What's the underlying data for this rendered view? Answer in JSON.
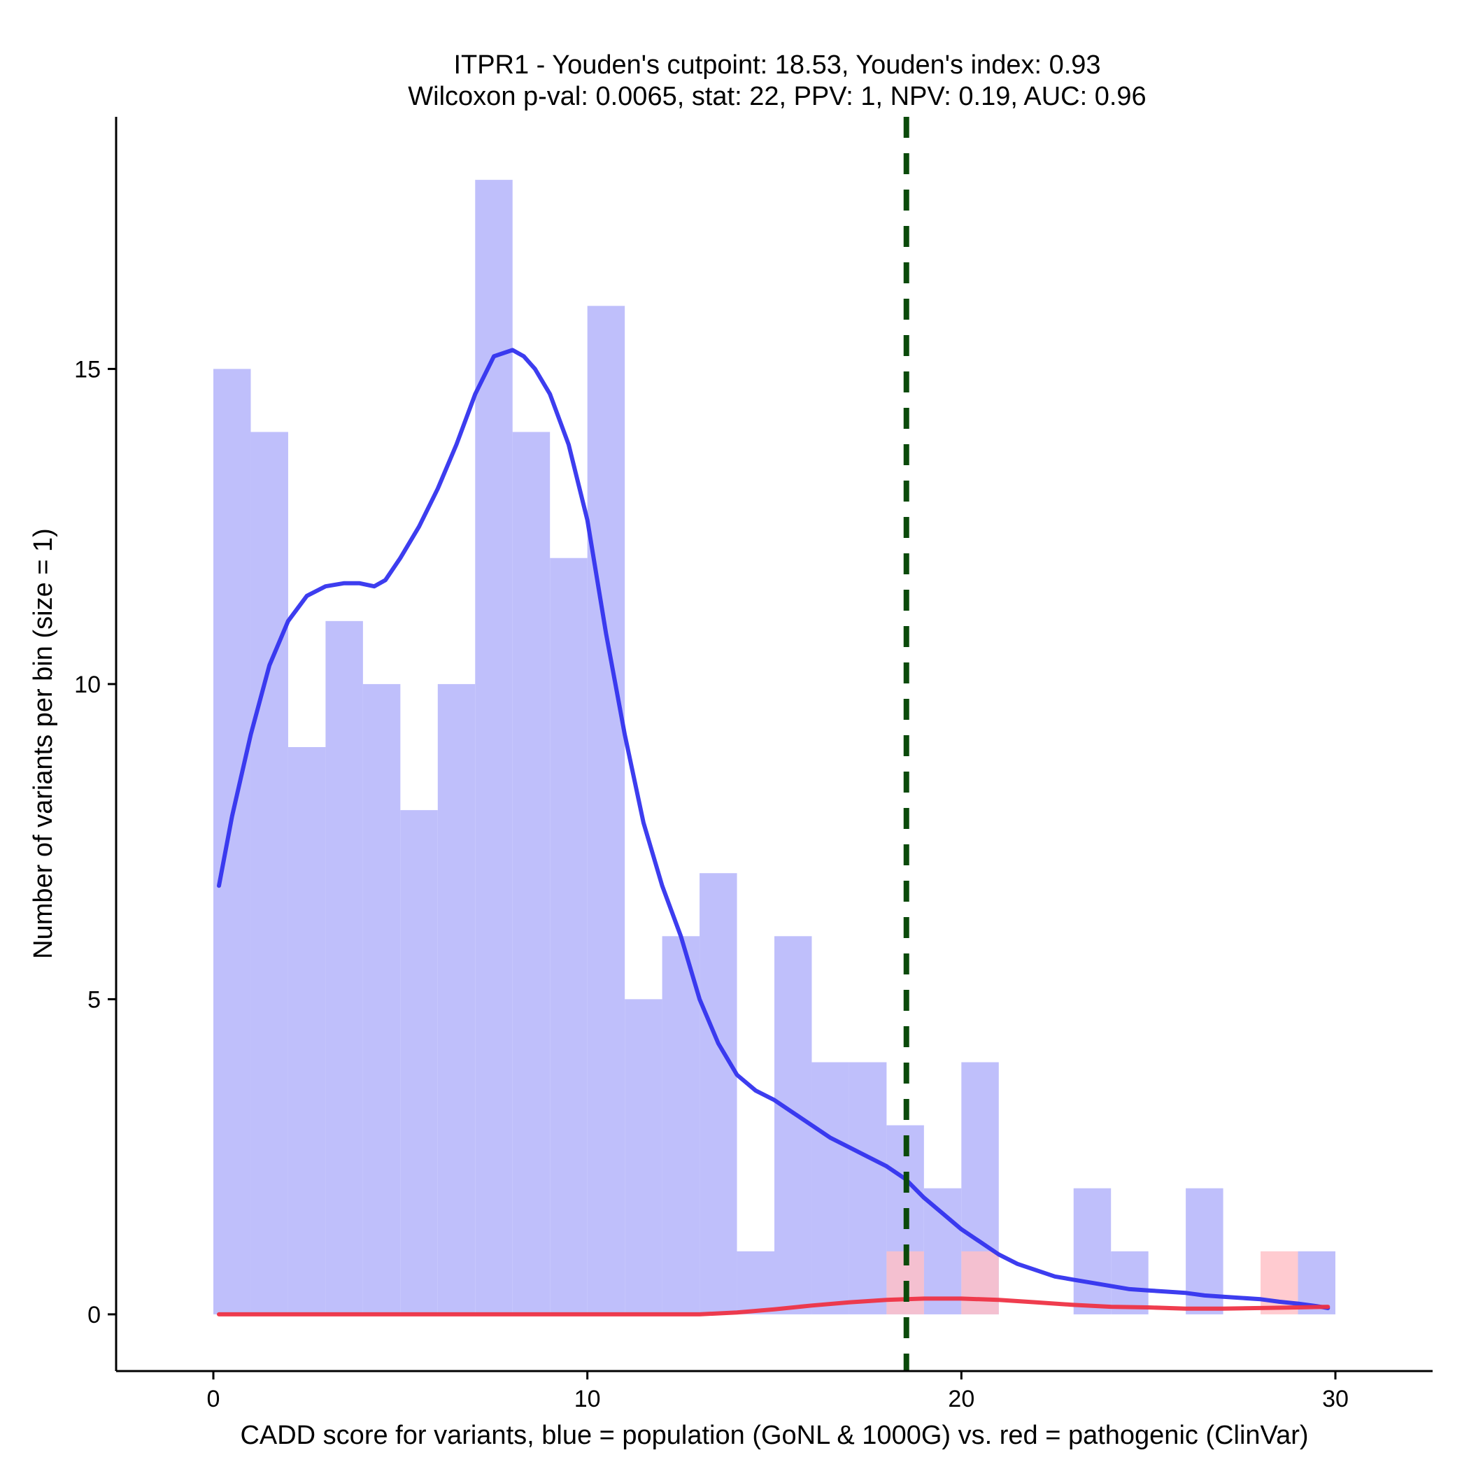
{
  "chart_data": {
    "type": "bar",
    "title_lines": [
      "ITPR1 - Youden's cutpoint: 18.53, Youden's index: 0.93",
      "Wilcoxon p-val: 0.0065, stat: 22, PPV: 1, NPV: 0.19, AUC: 0.96"
    ],
    "xlabel": "CADD score for variants, blue = population (GoNL & 1000G) vs. red = pathogenic (ClinVar)",
    "ylabel": "Number of variants per bin (size = 1)",
    "xlim": [
      -2.6,
      32.6
    ],
    "ylim": [
      -0.9,
      19.0
    ],
    "xticks": [
      0,
      10,
      20,
      30
    ],
    "yticks": [
      0,
      5,
      10,
      15
    ],
    "bin_width": 1,
    "cutpoint": 18.53,
    "colors": {
      "population": "#bfbffb",
      "pathogenic": "#ffbfc6",
      "population_density": "#3333ee",
      "pathogenic_density": "#ee3344",
      "cutpoint_line": "#0b4a0b",
      "axis": "#000000"
    },
    "series": [
      {
        "name": "population (GoNL & 1000G)",
        "bins": [
          {
            "x": 0,
            "count": 15
          },
          {
            "x": 1,
            "count": 14
          },
          {
            "x": 2,
            "count": 9
          },
          {
            "x": 3,
            "count": 11
          },
          {
            "x": 4,
            "count": 10
          },
          {
            "x": 5,
            "count": 8
          },
          {
            "x": 6,
            "count": 10
          },
          {
            "x": 7,
            "count": 18
          },
          {
            "x": 8,
            "count": 14
          },
          {
            "x": 9,
            "count": 12
          },
          {
            "x": 10,
            "count": 16
          },
          {
            "x": 11,
            "count": 5
          },
          {
            "x": 12,
            "count": 6
          },
          {
            "x": 13,
            "count": 7
          },
          {
            "x": 14,
            "count": 1
          },
          {
            "x": 15,
            "count": 6
          },
          {
            "x": 16,
            "count": 4
          },
          {
            "x": 17,
            "count": 4
          },
          {
            "x": 18,
            "count": 3
          },
          {
            "x": 19,
            "count": 2
          },
          {
            "x": 20,
            "count": 4
          },
          {
            "x": 21,
            "count": 0
          },
          {
            "x": 22,
            "count": 0
          },
          {
            "x": 23,
            "count": 2
          },
          {
            "x": 24,
            "count": 1
          },
          {
            "x": 25,
            "count": 0
          },
          {
            "x": 26,
            "count": 2
          },
          {
            "x": 27,
            "count": 0
          },
          {
            "x": 28,
            "count": 0
          },
          {
            "x": 29,
            "count": 1
          }
        ]
      },
      {
        "name": "pathogenic (ClinVar)",
        "bins": [
          {
            "x": 18,
            "count": 1
          },
          {
            "x": 20,
            "count": 1
          },
          {
            "x": 28,
            "count": 1
          }
        ]
      }
    ],
    "density": [
      {
        "name": "population density",
        "x": [
          0.15,
          0.5,
          1.0,
          1.5,
          2.0,
          2.5,
          3.0,
          3.5,
          3.9,
          4.3,
          4.6,
          5.0,
          5.5,
          6.0,
          6.5,
          7.0,
          7.5,
          8.0,
          8.3,
          8.6,
          9.0,
          9.5,
          10.0,
          10.5,
          11.0,
          11.5,
          12.0,
          12.5,
          13.0,
          13.5,
          14.0,
          14.5,
          15.0,
          15.5,
          16.0,
          16.5,
          17.0,
          17.5,
          18.0,
          18.5,
          19.0,
          19.5,
          20.0,
          20.5,
          21.0,
          21.5,
          22.0,
          22.5,
          23.0,
          23.5,
          24.0,
          24.5,
          25.0,
          25.5,
          26.0,
          26.5,
          27.0,
          27.5,
          28.0,
          28.5,
          29.0,
          29.5,
          29.8
        ],
        "y": [
          6.8,
          7.9,
          9.2,
          10.3,
          11.0,
          11.4,
          11.55,
          11.6,
          11.6,
          11.55,
          11.65,
          12.0,
          12.5,
          13.1,
          13.8,
          14.6,
          15.2,
          15.3,
          15.2,
          15.0,
          14.6,
          13.8,
          12.6,
          10.8,
          9.2,
          7.8,
          6.8,
          6.0,
          5.0,
          4.3,
          3.8,
          3.55,
          3.4,
          3.2,
          3.0,
          2.8,
          2.65,
          2.5,
          2.35,
          2.15,
          1.85,
          1.6,
          1.35,
          1.15,
          0.95,
          0.8,
          0.7,
          0.6,
          0.55,
          0.5,
          0.45,
          0.4,
          0.38,
          0.36,
          0.34,
          0.3,
          0.28,
          0.26,
          0.24,
          0.2,
          0.17,
          0.13,
          0.1
        ]
      },
      {
        "name": "pathogenic density",
        "x": [
          0.15,
          2.0,
          4.0,
          6.0,
          8.0,
          10.0,
          12.0,
          13.0,
          14.0,
          15.0,
          16.0,
          17.0,
          18.0,
          19.0,
          20.0,
          21.0,
          22.0,
          23.0,
          24.0,
          25.0,
          26.0,
          27.0,
          28.0,
          29.0,
          29.8
        ],
        "y": [
          0.0,
          0.0,
          0.0,
          0.0,
          0.0,
          0.0,
          0.0,
          0.0,
          0.03,
          0.08,
          0.14,
          0.19,
          0.23,
          0.25,
          0.25,
          0.23,
          0.19,
          0.15,
          0.12,
          0.11,
          0.09,
          0.09,
          0.1,
          0.11,
          0.12
        ]
      }
    ]
  }
}
